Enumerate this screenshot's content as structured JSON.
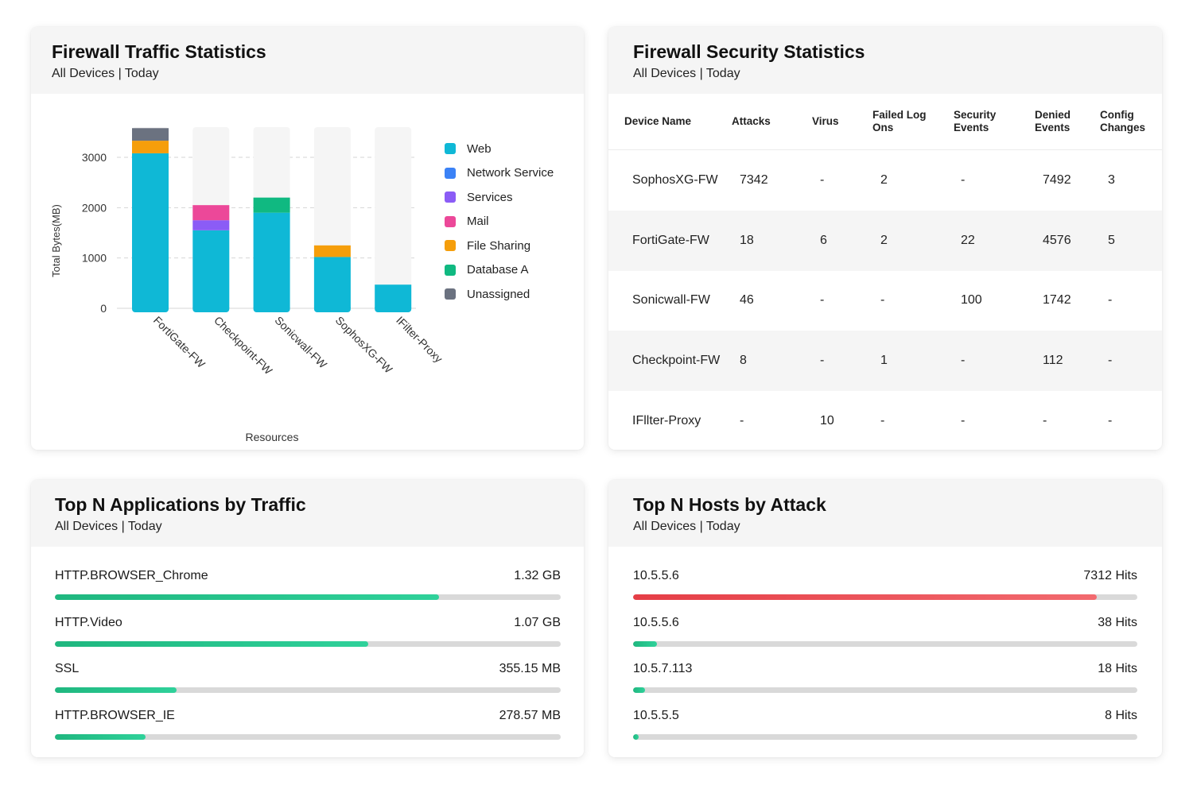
{
  "traffic": {
    "title": "Firewall Traffic Statistics",
    "subtitle": "All Devices | Today",
    "chart_data": {
      "type": "bar",
      "stacked": true,
      "categories": [
        "FortiGate-FW",
        "Checkpoint-FW",
        "Sonicwall-FW",
        "SophosXG-FW",
        "IFilter-Proxy"
      ],
      "series": [
        {
          "name": "Web",
          "color": "#0fb8d6",
          "values": [
            3080,
            1550,
            1900,
            1020,
            470
          ]
        },
        {
          "name": "Network Service",
          "color": "#3b82f6",
          "values": [
            0,
            0,
            0,
            0,
            0
          ]
        },
        {
          "name": "Services",
          "color": "#8b5cf6",
          "values": [
            0,
            200,
            0,
            0,
            0
          ]
        },
        {
          "name": "Mail",
          "color": "#ec4899",
          "values": [
            0,
            300,
            0,
            0,
            0
          ]
        },
        {
          "name": "File Sharing",
          "color": "#f59e0b",
          "values": [
            250,
            0,
            0,
            230,
            0
          ]
        },
        {
          "name": "Database A",
          "color": "#10b981",
          "values": [
            0,
            0,
            300,
            0,
            0
          ]
        },
        {
          "name": "Unassigned",
          "color": "#6b7280",
          "values": [
            250,
            0,
            0,
            0,
            0
          ]
        }
      ],
      "xlabel": "Resources",
      "ylabel": "Total Bytes(MB)",
      "ylim": [
        0,
        3600
      ],
      "yticks": [
        0,
        1000,
        2000,
        3000
      ],
      "grid": true,
      "legend": "right"
    },
    "legend": [
      {
        "label": "Web",
        "color": "#0fb8d6"
      },
      {
        "label": "Network Service",
        "color": "#3b82f6"
      },
      {
        "label": "Services",
        "color": "#8b5cf6"
      },
      {
        "label": "Mail",
        "color": "#ec4899"
      },
      {
        "label": "File Sharing",
        "color": "#f59e0b"
      },
      {
        "label": "Database A",
        "color": "#10b981"
      },
      {
        "label": "Unassigned",
        "color": "#6b7280"
      }
    ]
  },
  "security": {
    "title": "Firewall Security Statistics",
    "subtitle": "All Devices | Today",
    "columns": [
      "Device Name",
      "Attacks",
      "Virus",
      "Failed Log Ons",
      "Security Events",
      "Denied Events",
      "Config Changes"
    ],
    "rows": [
      [
        "SophosXG-FW",
        "7342",
        "-",
        "2",
        "-",
        "7492",
        "3"
      ],
      [
        "FortiGate-FW",
        "18",
        "6",
        "2",
        "22",
        "4576",
        "5"
      ],
      [
        "Sonicwall-FW",
        "46",
        "-",
        "-",
        "100",
        "1742",
        "-"
      ],
      [
        "Checkpoint-FW",
        "8",
        "-",
        "1",
        "-",
        "112",
        "-"
      ],
      [
        "IFllter-Proxy",
        "-",
        "10",
        "-",
        "-",
        "-",
        "-"
      ]
    ]
  },
  "apps": {
    "title": "Top N Applications by Traffic",
    "subtitle": "All Devices | Today",
    "items": [
      {
        "label": "HTTP.BROWSER_Chrome",
        "value": "1.32 GB",
        "fraction": 0.76,
        "color": "#22c08a"
      },
      {
        "label": "HTTP.Video",
        "value": "1.07 GB",
        "fraction": 0.62,
        "color": "#22c08a"
      },
      {
        "label": "SSL",
        "value": "355.15 MB",
        "fraction": 0.24,
        "color": "#22c08a"
      },
      {
        "label": "HTTP.BROWSER_IE",
        "value": "278.57 MB",
        "fraction": 0.18,
        "color": "#22c08a"
      }
    ]
  },
  "hosts": {
    "title": "Top N Hosts by Attack",
    "subtitle": "All Devices | Today",
    "items": [
      {
        "label": "10.5.5.6",
        "value": "7312 Hits",
        "fraction": 0.92,
        "color": "#e8444c"
      },
      {
        "label": "10.5.5.6",
        "value": "38 Hits",
        "fraction": 0.048,
        "color": "#22c08a"
      },
      {
        "label": "10.5.7.113",
        "value": "18 Hits",
        "fraction": 0.024,
        "color": "#22c08a"
      },
      {
        "label": "10.5.5.5",
        "value": "8 Hits",
        "fraction": 0.011,
        "color": "#22c08a"
      }
    ]
  }
}
